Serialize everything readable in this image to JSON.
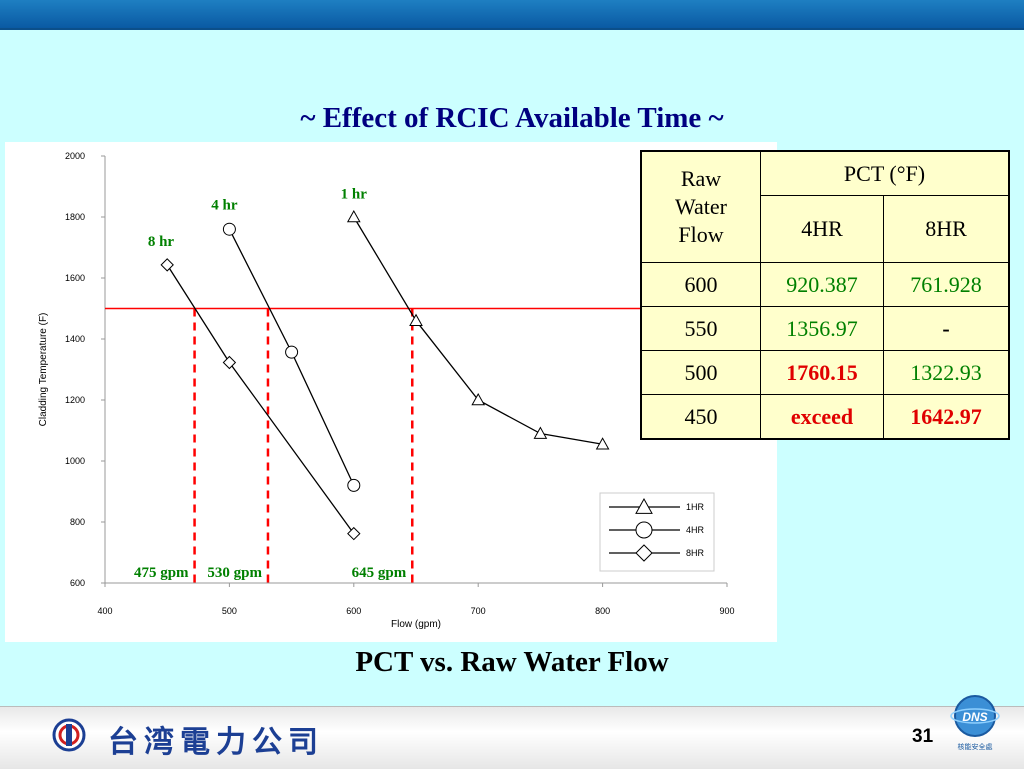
{
  "slide": {
    "title": "~ Effect of RCIC Available Time ~",
    "caption": "PCT vs. Raw Water Flow",
    "page_number": "31",
    "company_name": "台湾電力公司",
    "badge_text": "DNS",
    "badge_subtext": "核能安全處"
  },
  "table": {
    "header_row": "Raw Water Flow",
    "header_pct": "PCT (°F)",
    "sub_4hr": "4HR",
    "sub_8hr": "8HR",
    "rows": [
      {
        "flow": "600",
        "v4": "920.387",
        "v8": "761.928",
        "s4": "green",
        "s8": "green"
      },
      {
        "flow": "550",
        "v4": "1356.97",
        "v8": "-",
        "s4": "green",
        "s8": "black-bold"
      },
      {
        "flow": "500",
        "v4": "1760.15",
        "v8": "1322.93",
        "s4": "red",
        "s8": "green"
      },
      {
        "flow": "450",
        "v4": "exceed",
        "v8": "1642.97",
        "s4": "red",
        "s8": "red"
      }
    ]
  },
  "chart_data": {
    "type": "line",
    "xlabel": "Flow (gpm)",
    "ylabel": "Cladding Temperature (F)",
    "xlim": [
      400,
      900
    ],
    "ylim": [
      600,
      2000
    ],
    "xticks": [
      400,
      500,
      600,
      700,
      800,
      900
    ],
    "yticks": [
      600,
      800,
      1000,
      1200,
      1400,
      1600,
      1800,
      2000
    ],
    "series": [
      {
        "name": "1HR",
        "marker": "triangle",
        "x": [
          600,
          650,
          700,
          750,
          800
        ],
        "y": [
          1800,
          1460,
          1200,
          1090,
          1055
        ]
      },
      {
        "name": "4HR",
        "marker": "circle",
        "x": [
          500,
          550,
          600
        ],
        "y": [
          1760,
          1357,
          920
        ]
      },
      {
        "name": "8HR",
        "marker": "diamond",
        "x": [
          450,
          500,
          600
        ],
        "y": [
          1643,
          1323,
          762
        ]
      }
    ],
    "threshold_y": 1500,
    "threshold_color": "#ff0000",
    "crossings": [
      {
        "x": 472,
        "label": "475 gpm"
      },
      {
        "x": 531,
        "label": "530 gpm"
      },
      {
        "x": 647,
        "label": "645 gpm"
      }
    ],
    "annotations": [
      {
        "text": "1 hr",
        "x": 600,
        "y": 1860
      },
      {
        "text": "4 hr",
        "x": 496,
        "y": 1825
      },
      {
        "text": "8 hr",
        "x": 445,
        "y": 1705
      }
    ],
    "annotation_color": "#008000",
    "legend_position": "bottom-right"
  }
}
